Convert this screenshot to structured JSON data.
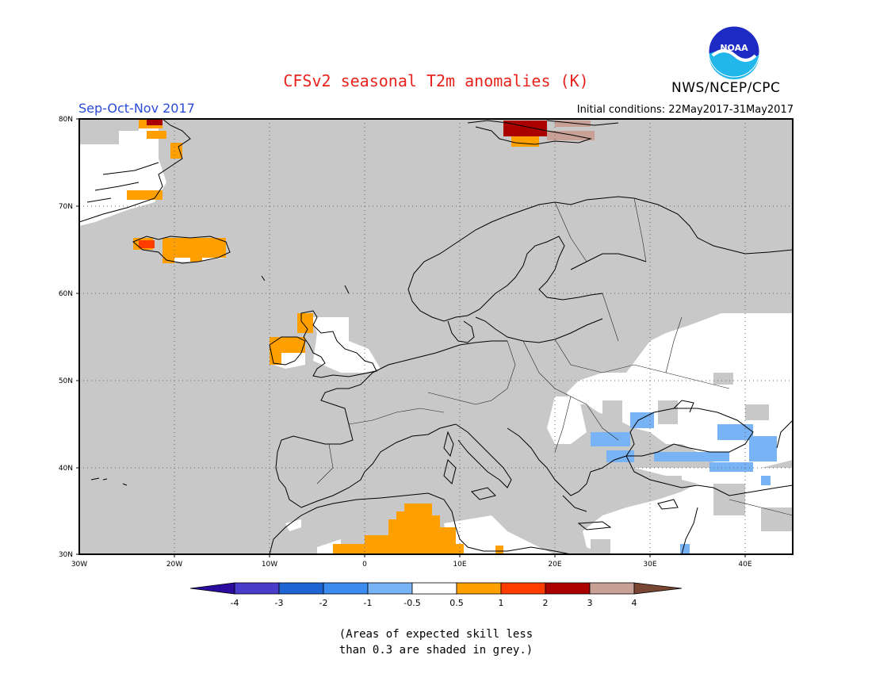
{
  "header": {
    "title": "CFSv2 seasonal T2m anomalies (K)",
    "agency": "NWS/NCEP/CPC",
    "logo_text": "NOAA",
    "season": "Sep-Oct-Nov 2017",
    "initial_conditions": "Initial conditions: 22May2017-31May2017"
  },
  "map": {
    "projection": "lat-lon",
    "lon_range": [
      -30,
      45
    ],
    "lat_range": [
      30,
      80
    ],
    "lat_ticks": [
      "80N",
      "70N",
      "60N",
      "50N",
      "40N",
      "30N"
    ],
    "lon_ticks": [
      "30W",
      "20W",
      "10W",
      "0",
      "10E",
      "20E",
      "30E",
      "40E"
    ],
    "background_color": "#c8c8c8",
    "gridlines": "dotted"
  },
  "colorbar": {
    "labels": [
      "-4",
      "-3",
      "-2",
      "-1",
      "-0.5",
      "0.5",
      "1",
      "2",
      "3",
      "4"
    ],
    "colors": [
      "#2a0d9e",
      "#4a3ccb",
      "#1e64d2",
      "#3c8cf0",
      "#78b4f5",
      "#ffffff",
      "#ffa000",
      "#ff3c00",
      "#aa0000",
      "#c8a096",
      "#784632"
    ]
  },
  "footnote": {
    "line1": "(Areas of expected skill less",
    "line2": "than 0.3 are shaded in grey.)"
  }
}
